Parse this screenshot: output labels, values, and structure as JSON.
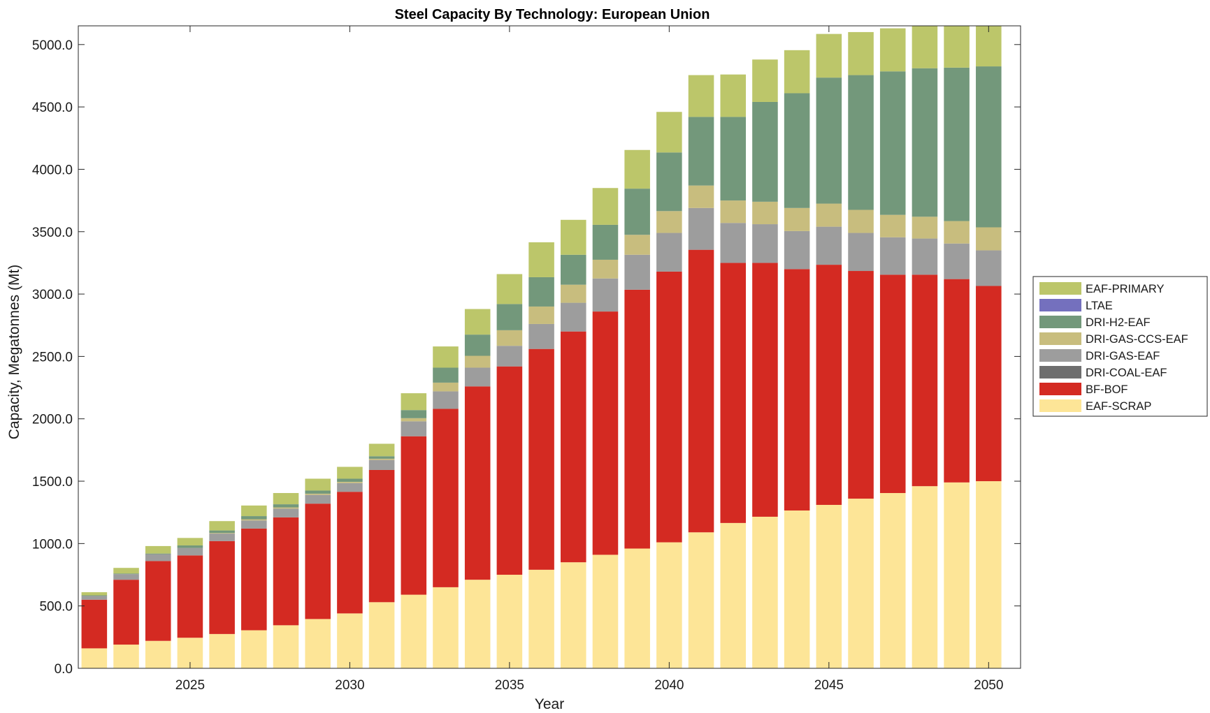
{
  "chart_data": {
    "type": "bar",
    "stacked": true,
    "title": "Steel Capacity By Technology: European Union",
    "xlabel": "Year",
    "ylabel": "Capacity, Megatonnes (Mt)",
    "xlim": [
      2021.5,
      2051.0
    ],
    "ylim": [
      0,
      5150
    ],
    "xticks": [
      2025,
      2030,
      2035,
      2040,
      2045,
      2050
    ],
    "xtick_labels": [
      "2025",
      "2030",
      "2035",
      "2040",
      "2045",
      "2050"
    ],
    "yticks": [
      0,
      500,
      1000,
      1500,
      2000,
      2500,
      3000,
      3500,
      4000,
      4500,
      5000
    ],
    "ytick_labels": [
      "0.0",
      "500.0",
      "1000.0",
      "1500.0",
      "2000.0",
      "2500.0",
      "3000.0",
      "3500.0",
      "4000.0",
      "4500.0",
      "5000.0"
    ],
    "grid": false,
    "legend_position": "right",
    "categories": [
      2022,
      2023,
      2024,
      2025,
      2026,
      2027,
      2028,
      2029,
      2030,
      2031,
      2032,
      2033,
      2034,
      2035,
      2036,
      2037,
      2038,
      2039,
      2040,
      2041,
      2042,
      2043,
      2044,
      2045,
      2046,
      2047,
      2048,
      2049,
      2050
    ],
    "series": [
      {
        "name": "EAF-SCRAP",
        "color": "#FDE597",
        "values": [
          160,
          190,
          220,
          245,
          275,
          305,
          345,
          395,
          440,
          530,
          590,
          650,
          710,
          750,
          790,
          850,
          910,
          960,
          1010,
          1090,
          1165,
          1215,
          1265,
          1310,
          1360,
          1405,
          1460,
          1490,
          1500
        ]
      },
      {
        "name": "BF-BOF",
        "color": "#D42A22",
        "values": [
          390,
          520,
          640,
          660,
          745,
          815,
          865,
          925,
          975,
          1060,
          1270,
          1430,
          1550,
          1670,
          1770,
          1850,
          1950,
          2075,
          2170,
          2265,
          2085,
          2035,
          1935,
          1925,
          1825,
          1750,
          1695,
          1630,
          1565
        ]
      },
      {
        "name": "DRI-COAL-EAF",
        "color": "#6E6E6E",
        "values": [
          0,
          0,
          0,
          0,
          0,
          0,
          0,
          0,
          0,
          0,
          0,
          0,
          0,
          0,
          0,
          0,
          0,
          0,
          0,
          0,
          0,
          0,
          0,
          0,
          0,
          0,
          0,
          0,
          0
        ]
      },
      {
        "name": "DRI-GAS-EAF",
        "color": "#9D9D9D",
        "values": [
          30,
          45,
          55,
          60,
          60,
          65,
          70,
          70,
          70,
          80,
          120,
          140,
          150,
          165,
          200,
          230,
          265,
          280,
          310,
          335,
          320,
          310,
          305,
          305,
          305,
          300,
          290,
          285,
          285
        ]
      },
      {
        "name": "DRI-GAS-CCS-EAF",
        "color": "#C8BD7E",
        "values": [
          0,
          0,
          0,
          0,
          5,
          10,
          10,
          10,
          10,
          10,
          25,
          70,
          95,
          125,
          140,
          145,
          150,
          160,
          175,
          180,
          180,
          180,
          185,
          185,
          185,
          180,
          175,
          180,
          185
        ]
      },
      {
        "name": "DRI-H2-EAF",
        "color": "#73987B",
        "values": [
          5,
          5,
          5,
          20,
          20,
          25,
          25,
          25,
          25,
          20,
          65,
          120,
          170,
          210,
          235,
          240,
          280,
          370,
          470,
          550,
          670,
          800,
          920,
          1010,
          1080,
          1150,
          1190,
          1230,
          1290
        ]
      },
      {
        "name": "LTAE",
        "color": "#7470BE",
        "values": [
          0,
          0,
          0,
          0,
          0,
          0,
          0,
          0,
          0,
          0,
          0,
          0,
          0,
          0,
          0,
          0,
          0,
          0,
          0,
          0,
          0,
          0,
          0,
          0,
          0,
          0,
          0,
          0,
          0
        ]
      },
      {
        "name": "EAF-PRIMARY",
        "color": "#BCC66A",
        "values": [
          25,
          45,
          60,
          60,
          75,
          85,
          90,
          95,
          95,
          100,
          135,
          170,
          205,
          240,
          280,
          280,
          295,
          310,
          325,
          335,
          340,
          340,
          345,
          350,
          345,
          345,
          340,
          340,
          335
        ]
      }
    ],
    "legend_order": [
      "EAF-PRIMARY",
      "LTAE",
      "DRI-H2-EAF",
      "DRI-GAS-CCS-EAF",
      "DRI-GAS-EAF",
      "DRI-COAL-EAF",
      "BF-BOF",
      "EAF-SCRAP"
    ]
  }
}
